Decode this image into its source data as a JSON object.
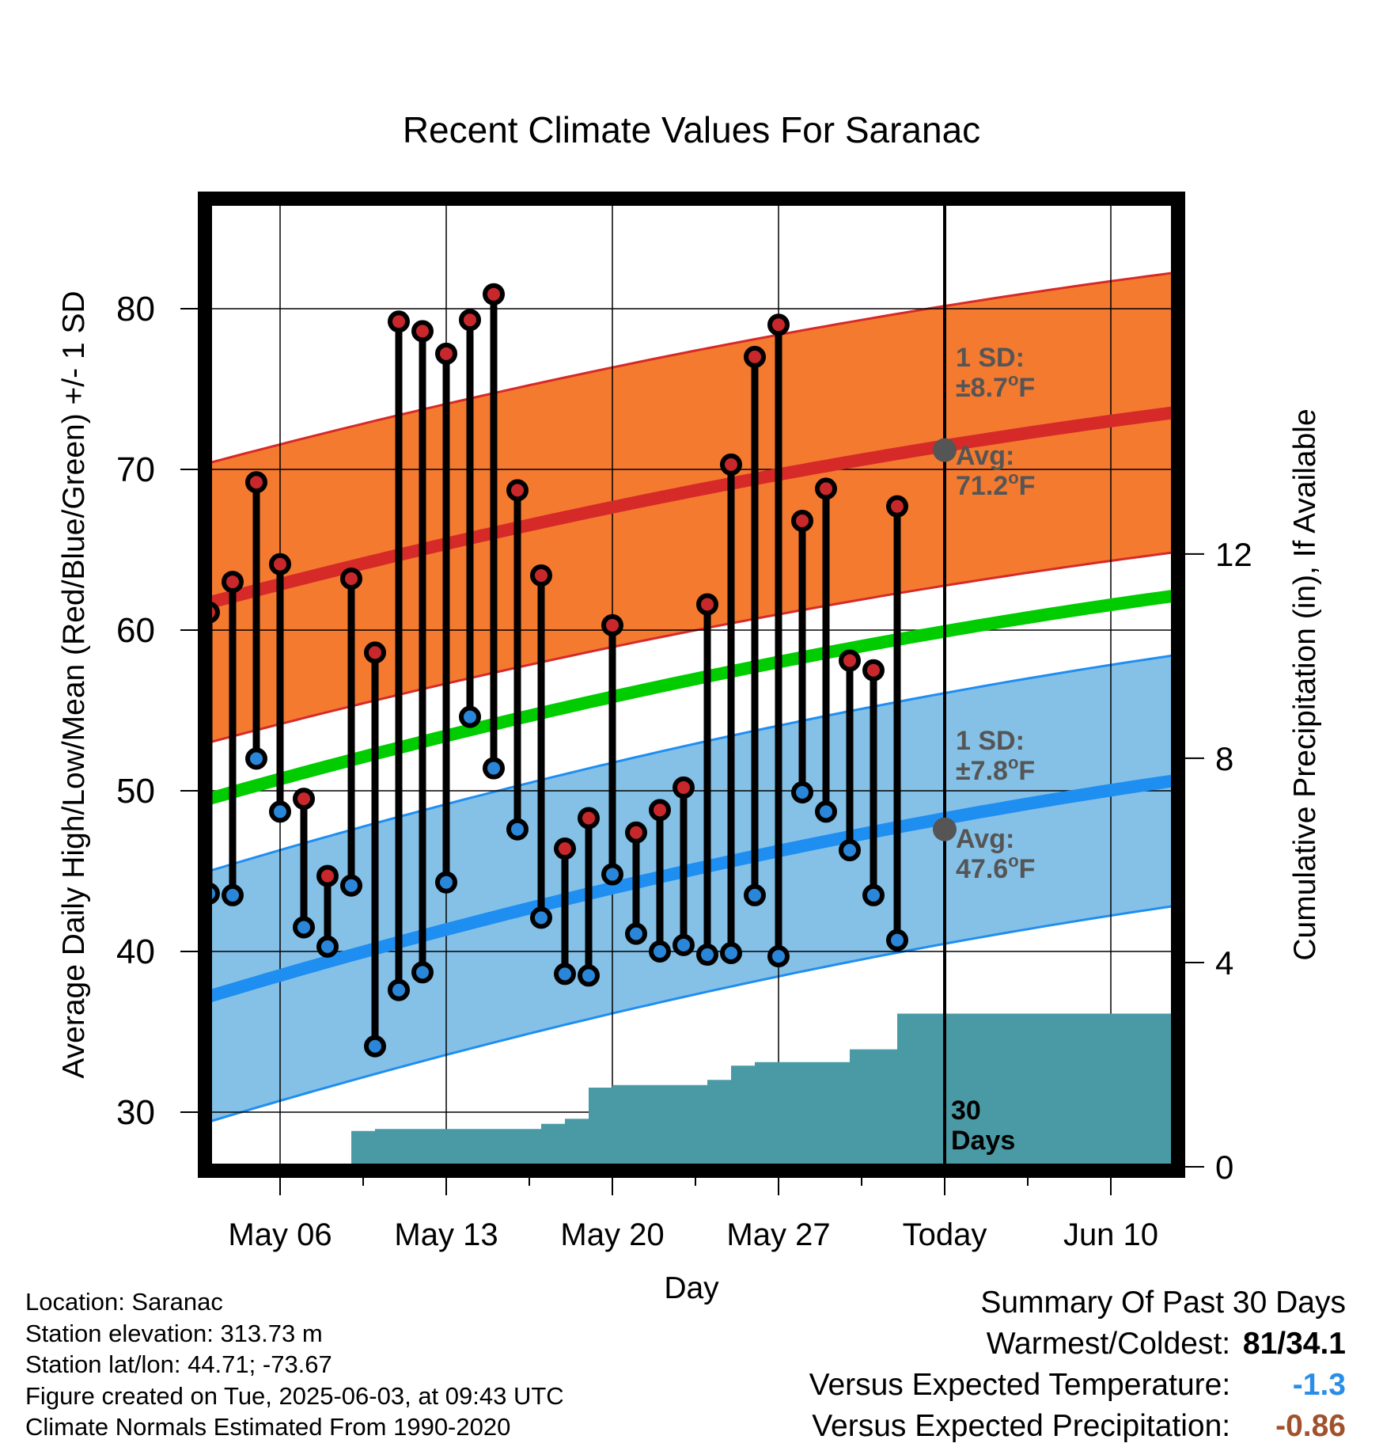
{
  "chart_data": {
    "type": "line",
    "title": "Recent Climate Values For Saranac",
    "xlabel": "Day",
    "ylabel_left": "Average Daily High/Low/Mean (Red/Blue/Green) +/- 1 SD",
    "ylabel_right": "Cumulative Precipitation (in), If Available",
    "ylim_left": [
      26.6,
      86.6
    ],
    "ylim_right": [
      0,
      18.88
    ],
    "x_tick_labels": [
      "May 06",
      "May 13",
      "May 20",
      "May 27",
      "Today",
      "Jun 10"
    ],
    "y_ticks_left": [
      30,
      40,
      50,
      60,
      70,
      80
    ],
    "y_ticks_right": [
      0,
      4,
      8,
      12
    ],
    "x_start_date": "May 03",
    "daily_highs": [
      61.1,
      63.0,
      69.2,
      64.1,
      49.5,
      44.7,
      63.2,
      58.6,
      79.2,
      78.6,
      77.2,
      79.3,
      80.9,
      68.7,
      63.4,
      46.4,
      48.3,
      60.3,
      47.4,
      48.8,
      50.2,
      61.6,
      70.3,
      77.0,
      79.0,
      66.8,
      68.8,
      58.1,
      57.5,
      67.7
    ],
    "daily_lows": [
      43.6,
      43.5,
      52.0,
      48.7,
      41.5,
      40.3,
      44.1,
      34.1,
      37.6,
      38.7,
      44.3,
      54.6,
      51.4,
      47.6,
      42.1,
      38.6,
      38.5,
      44.8,
      41.1,
      40.0,
      40.4,
      39.8,
      39.9,
      43.5,
      39.7,
      49.9,
      48.7,
      46.3,
      43.5,
      40.7
    ],
    "normal_high": {
      "start": 61.7,
      "end": 73.6,
      "today": 71.2,
      "sd": 8.7
    },
    "normal_low": {
      "start": 37.2,
      "end": 50.7,
      "today": 47.6,
      "sd": 7.8
    },
    "normal_mean": {
      "start": 49.5,
      "end": 62.2
    },
    "cumulative_precip": {
      "days": [
        5,
        6,
        7,
        8,
        9,
        10,
        11,
        12,
        13,
        14,
        15,
        16,
        17,
        18,
        19,
        20,
        21,
        22,
        23,
        24,
        25,
        26,
        27,
        28,
        29,
        30,
        31,
        32,
        33,
        34,
        35,
        36,
        37,
        38,
        39,
        40,
        41
      ],
      "values": [
        0,
        0.7,
        0.74,
        0.74,
        0.74,
        0.74,
        0.74,
        0.74,
        0.74,
        0.84,
        0.94,
        1.55,
        1.6,
        1.6,
        1.6,
        1.6,
        1.7,
        1.98,
        2.05,
        2.05,
        2.05,
        2.05,
        2.3,
        2.3,
        3.0,
        3.0,
        3.0,
        3.0,
        3.0,
        3.0,
        3.0,
        3.0,
        3.0,
        3.0,
        3.0,
        3.0,
        3.0
      ]
    },
    "annotations": {
      "high_sd": [
        "1 SD:",
        "±8.7°F"
      ],
      "high_avg": [
        "Avg:",
        "71.2°F"
      ],
      "low_sd": [
        "1 SD:",
        "±7.8°F"
      ],
      "low_avg": [
        "Avg:",
        "47.6°F"
      ],
      "period": [
        "30",
        "Days"
      ]
    },
    "colors": {
      "high_band": "#f47a30",
      "high_line": "#d62a28",
      "low_band": "#85c1e7",
      "low_line": "#1f8ef1",
      "mean_line": "#00cc00",
      "precip": "#4a9aa5",
      "high_dot": "#c8282c",
      "low_dot": "#2a86d8",
      "annotation": "#555555"
    },
    "grid": true
  },
  "footer": {
    "location": "Location: Saranac",
    "elevation": "Station elevation: 313.73 m",
    "latlon": "Station lat/lon: 44.71; -73.67",
    "created": "Figure created on Tue, 2025-06-03, at 09:43 UTC",
    "normals": "Climate Normals Estimated From 1990-2020"
  },
  "summary": {
    "title": "Summary Of Past 30 Days",
    "warmest_label": "Warmest/Coldest:",
    "warmest_value": "81/34.1",
    "temp_label": "Versus Expected Temperature:",
    "temp_value": "-1.3",
    "temp_color": "#2a8ee8",
    "precip_label": "Versus Expected Precipitation:",
    "precip_value": "-0.86",
    "precip_color": "#a0522d"
  }
}
